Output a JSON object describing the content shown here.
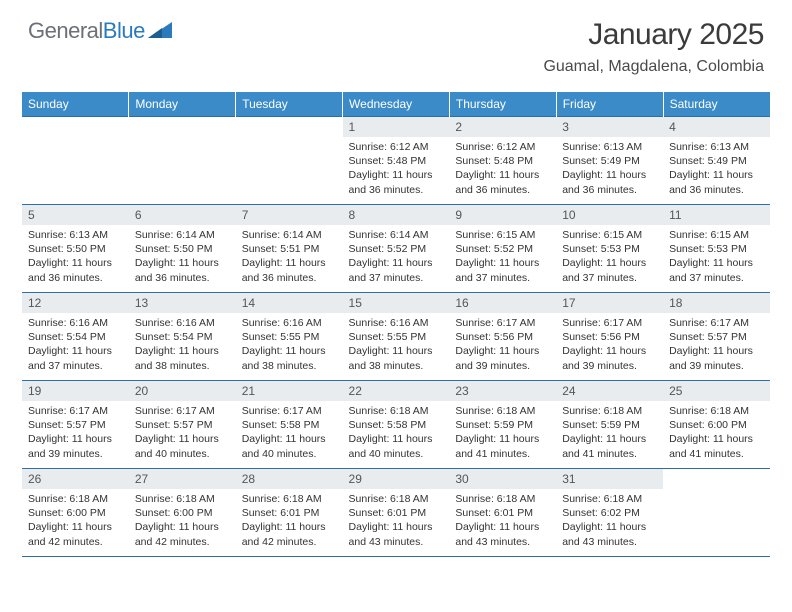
{
  "brand": {
    "part1": "General",
    "part2": "Blue"
  },
  "title": "January 2025",
  "location": "Guamal, Magdalena, Colombia",
  "colors": {
    "header_bg": "#3b8bc9",
    "header_text": "#ffffff",
    "border": "#2c6ea8",
    "daynum_bg": "#e9ecef",
    "logo_gray": "#6a7178",
    "logo_blue": "#2b7bbc"
  },
  "weekdays": [
    "Sunday",
    "Monday",
    "Tuesday",
    "Wednesday",
    "Thursday",
    "Friday",
    "Saturday"
  ],
  "weeks": [
    [
      {
        "n": "",
        "lines": []
      },
      {
        "n": "",
        "lines": []
      },
      {
        "n": "",
        "lines": []
      },
      {
        "n": "1",
        "lines": [
          "Sunrise: 6:12 AM",
          "Sunset: 5:48 PM",
          "Daylight: 11 hours and 36 minutes."
        ]
      },
      {
        "n": "2",
        "lines": [
          "Sunrise: 6:12 AM",
          "Sunset: 5:48 PM",
          "Daylight: 11 hours and 36 minutes."
        ]
      },
      {
        "n": "3",
        "lines": [
          "Sunrise: 6:13 AM",
          "Sunset: 5:49 PM",
          "Daylight: 11 hours and 36 minutes."
        ]
      },
      {
        "n": "4",
        "lines": [
          "Sunrise: 6:13 AM",
          "Sunset: 5:49 PM",
          "Daylight: 11 hours and 36 minutes."
        ]
      }
    ],
    [
      {
        "n": "5",
        "lines": [
          "Sunrise: 6:13 AM",
          "Sunset: 5:50 PM",
          "Daylight: 11 hours and 36 minutes."
        ]
      },
      {
        "n": "6",
        "lines": [
          "Sunrise: 6:14 AM",
          "Sunset: 5:50 PM",
          "Daylight: 11 hours and 36 minutes."
        ]
      },
      {
        "n": "7",
        "lines": [
          "Sunrise: 6:14 AM",
          "Sunset: 5:51 PM",
          "Daylight: 11 hours and 36 minutes."
        ]
      },
      {
        "n": "8",
        "lines": [
          "Sunrise: 6:14 AM",
          "Sunset: 5:52 PM",
          "Daylight: 11 hours and 37 minutes."
        ]
      },
      {
        "n": "9",
        "lines": [
          "Sunrise: 6:15 AM",
          "Sunset: 5:52 PM",
          "Daylight: 11 hours and 37 minutes."
        ]
      },
      {
        "n": "10",
        "lines": [
          "Sunrise: 6:15 AM",
          "Sunset: 5:53 PM",
          "Daylight: 11 hours and 37 minutes."
        ]
      },
      {
        "n": "11",
        "lines": [
          "Sunrise: 6:15 AM",
          "Sunset: 5:53 PM",
          "Daylight: 11 hours and 37 minutes."
        ]
      }
    ],
    [
      {
        "n": "12",
        "lines": [
          "Sunrise: 6:16 AM",
          "Sunset: 5:54 PM",
          "Daylight: 11 hours and 37 minutes."
        ]
      },
      {
        "n": "13",
        "lines": [
          "Sunrise: 6:16 AM",
          "Sunset: 5:54 PM",
          "Daylight: 11 hours and 38 minutes."
        ]
      },
      {
        "n": "14",
        "lines": [
          "Sunrise: 6:16 AM",
          "Sunset: 5:55 PM",
          "Daylight: 11 hours and 38 minutes."
        ]
      },
      {
        "n": "15",
        "lines": [
          "Sunrise: 6:16 AM",
          "Sunset: 5:55 PM",
          "Daylight: 11 hours and 38 minutes."
        ]
      },
      {
        "n": "16",
        "lines": [
          "Sunrise: 6:17 AM",
          "Sunset: 5:56 PM",
          "Daylight: 11 hours and 39 minutes."
        ]
      },
      {
        "n": "17",
        "lines": [
          "Sunrise: 6:17 AM",
          "Sunset: 5:56 PM",
          "Daylight: 11 hours and 39 minutes."
        ]
      },
      {
        "n": "18",
        "lines": [
          "Sunrise: 6:17 AM",
          "Sunset: 5:57 PM",
          "Daylight: 11 hours and 39 minutes."
        ]
      }
    ],
    [
      {
        "n": "19",
        "lines": [
          "Sunrise: 6:17 AM",
          "Sunset: 5:57 PM",
          "Daylight: 11 hours and 39 minutes."
        ]
      },
      {
        "n": "20",
        "lines": [
          "Sunrise: 6:17 AM",
          "Sunset: 5:57 PM",
          "Daylight: 11 hours and 40 minutes."
        ]
      },
      {
        "n": "21",
        "lines": [
          "Sunrise: 6:17 AM",
          "Sunset: 5:58 PM",
          "Daylight: 11 hours and 40 minutes."
        ]
      },
      {
        "n": "22",
        "lines": [
          "Sunrise: 6:18 AM",
          "Sunset: 5:58 PM",
          "Daylight: 11 hours and 40 minutes."
        ]
      },
      {
        "n": "23",
        "lines": [
          "Sunrise: 6:18 AM",
          "Sunset: 5:59 PM",
          "Daylight: 11 hours and 41 minutes."
        ]
      },
      {
        "n": "24",
        "lines": [
          "Sunrise: 6:18 AM",
          "Sunset: 5:59 PM",
          "Daylight: 11 hours and 41 minutes."
        ]
      },
      {
        "n": "25",
        "lines": [
          "Sunrise: 6:18 AM",
          "Sunset: 6:00 PM",
          "Daylight: 11 hours and 41 minutes."
        ]
      }
    ],
    [
      {
        "n": "26",
        "lines": [
          "Sunrise: 6:18 AM",
          "Sunset: 6:00 PM",
          "Daylight: 11 hours and 42 minutes."
        ]
      },
      {
        "n": "27",
        "lines": [
          "Sunrise: 6:18 AM",
          "Sunset: 6:00 PM",
          "Daylight: 11 hours and 42 minutes."
        ]
      },
      {
        "n": "28",
        "lines": [
          "Sunrise: 6:18 AM",
          "Sunset: 6:01 PM",
          "Daylight: 11 hours and 42 minutes."
        ]
      },
      {
        "n": "29",
        "lines": [
          "Sunrise: 6:18 AM",
          "Sunset: 6:01 PM",
          "Daylight: 11 hours and 43 minutes."
        ]
      },
      {
        "n": "30",
        "lines": [
          "Sunrise: 6:18 AM",
          "Sunset: 6:01 PM",
          "Daylight: 11 hours and 43 minutes."
        ]
      },
      {
        "n": "31",
        "lines": [
          "Sunrise: 6:18 AM",
          "Sunset: 6:02 PM",
          "Daylight: 11 hours and 43 minutes."
        ]
      },
      {
        "n": "",
        "lines": []
      }
    ]
  ]
}
